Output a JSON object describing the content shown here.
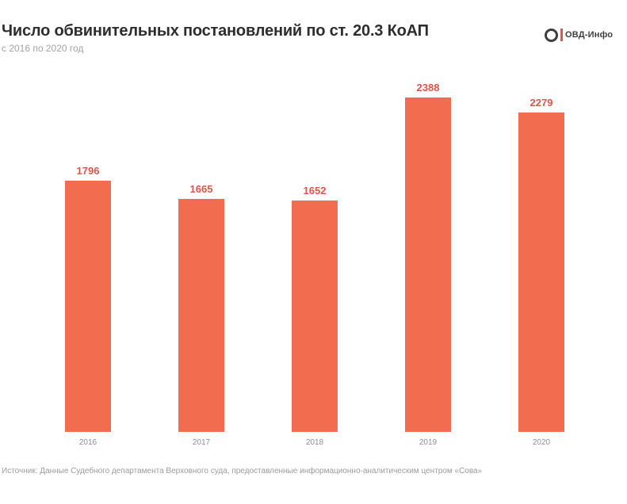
{
  "header": {
    "title": "Число обвинительных постановлений по ст. 20.3 КоАП",
    "subtitle": "с 2016 по 2020 год"
  },
  "logo": {
    "text": "ОВД-Инфо"
  },
  "footer": {
    "source": "Источник: Данные Судебного департамента Верховного суда, предоставленные информационно-аналитическим центром «Сова»"
  },
  "colors": {
    "bar": "#f26c4f",
    "value_label": "#e0544a",
    "title": "#2d2d2d",
    "subtitle": "#a3a3a3",
    "axis_label": "#8f8f8f",
    "source": "#9b9b9b",
    "logo_accent": "#f0503c",
    "logo_dark": "#3d3d3d"
  },
  "chart_data": {
    "type": "bar",
    "categories": [
      "2016",
      "2017",
      "2018",
      "2019",
      "2020"
    ],
    "values": [
      1796,
      1665,
      1652,
      2388,
      2279
    ],
    "title": "Число обвинительных постановлений по ст. 20.3 КоАП",
    "subtitle": "с 2016 по 2020 год",
    "xlabel": "",
    "ylabel": "",
    "ylim": [
      0,
      2388
    ],
    "grid": false,
    "legend": false,
    "bar_color": "#f26c4f",
    "value_labels_shown": true
  }
}
